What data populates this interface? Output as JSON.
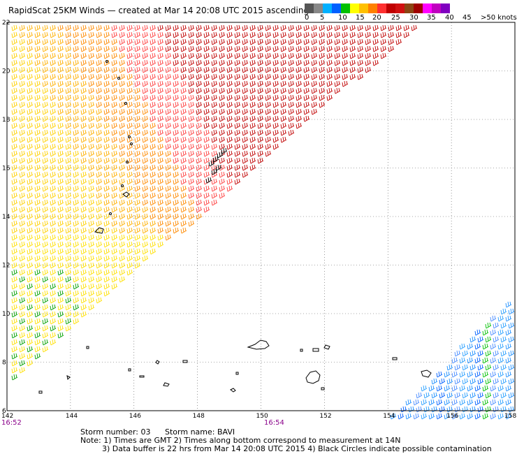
{
  "header": {
    "title": "RapidScat 25KM Winds — created at Mar 14 20:08 UTC 2015 ascending"
  },
  "legend": {
    "labels": [
      "0",
      "5",
      "10",
      "15",
      "20",
      "25",
      "30",
      "35",
      "40",
      "45",
      ">50 knots"
    ],
    "swatches": [
      "#555555",
      "#888888",
      "#00b0ff",
      "#0060ff",
      "#00c000",
      "#ffff00",
      "#ffc000",
      "#ff8000",
      "#ff3030",
      "#c00000",
      "#d01010",
      "#8b4513",
      "#a00000",
      "#ff00ff",
      "#c000c0",
      "#8000c0"
    ]
  },
  "map": {
    "lat_labels": [
      "22",
      "20",
      "18",
      "16",
      "14",
      "12",
      "10",
      "8",
      "6"
    ],
    "lon_labels": [
      "142",
      "144",
      "146",
      "148",
      "150",
      "152",
      "154",
      "156",
      "158"
    ]
  },
  "times": {
    "left": "16:52",
    "center": "16:54"
  },
  "footer": {
    "storm_number": "Storm number: 03",
    "storm_name": "Storm name: BAVI",
    "note1": "Note: 1) Times are GMT  2) Times along bottom correspond to measurement at 14N",
    "note2": "3) Data buffer is 22 hrs from Mar 14 20:08 UTC 2015  4) Black Circles indicate possible contamination"
  }
}
